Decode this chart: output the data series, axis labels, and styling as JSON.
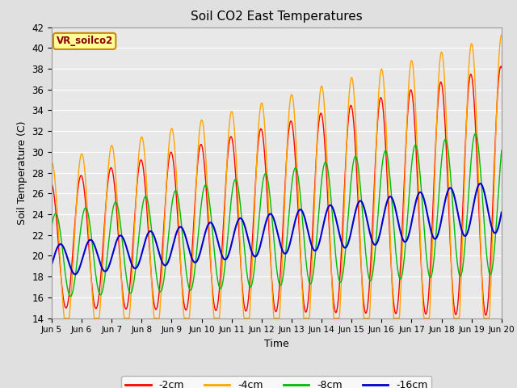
{
  "title": "Soil CO2 East Temperatures",
  "xlabel": "Time",
  "ylabel": "Soil Temperature (C)",
  "ylim": [
    14,
    42
  ],
  "xlim": [
    0,
    15
  ],
  "bg_color": "#e0e0e0",
  "plot_bg_color": "#e8e8e8",
  "legend_label": "VR_soilco2",
  "series_labels": [
    "-2cm",
    "-4cm",
    "-8cm",
    "-16cm"
  ],
  "series_colors": [
    "#ff0000",
    "#ffa500",
    "#00bb00",
    "#0000cc"
  ],
  "xtick_labels": [
    "Jun 5",
    "Jun 6",
    "Jun 7",
    "Jun 8",
    "Jun 9",
    "Jun 10",
    "Jun 11",
    "Jun 12",
    "Jun 13",
    "Jun 14",
    "Jun 15",
    "Jun 16",
    "Jun 17",
    "Jun 18",
    "Jun 19",
    "Jun 20"
  ],
  "ytick_values": [
    14,
    16,
    18,
    20,
    22,
    24,
    26,
    28,
    30,
    32,
    34,
    36,
    38,
    40,
    42
  ],
  "figsize": [
    6.4,
    4.8
  ],
  "dpi": 100
}
